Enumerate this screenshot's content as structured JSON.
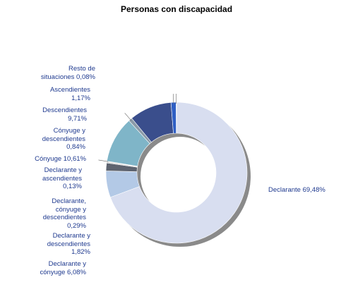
{
  "chart_data": {
    "type": "pie",
    "donut": true,
    "title": "Personas con discapacidad",
    "labels": [
      "Declarante",
      "Declarante y cónyuge",
      "Declarante y descendientes",
      "Declarante, cónyuge y descendientes",
      "Declarante y ascendientes",
      "Cónyuge",
      "Cónyuge y descendientes",
      "Descendientes",
      "Ascendientes",
      "Resto de situaciones"
    ],
    "values": [
      69.48,
      6.08,
      1.82,
      0.29,
      0.13,
      10.61,
      0.84,
      9.71,
      1.17,
      0.08
    ],
    "value_labels": [
      "69,48%",
      "6,08%",
      "1,82%",
      "0,29%",
      "0,13%",
      "10,61%",
      "0,84%",
      "9,71%",
      "1,17%",
      "0,08%"
    ],
    "display_labels": [
      "Declarante 69,48%",
      "Declarante y\ncónyuge 6,08%",
      "Declarante y\ndescendientes\n1,82%",
      "Declarante,\ncónyuge y\ndescendientes\n0,29%",
      "Declarante y\nascendientes\n0,13%",
      "Cónyuge 10,61%",
      "Cónyuge y\ndescendientes\n0,84%",
      "Descendientes\n9,71%",
      "Ascendientes\n1,17%",
      "Resto de\nsituaciones 0,08%"
    ],
    "colors": [
      "#d8def0",
      "#b3c9e6",
      "#5e6470",
      "#d0d0d0",
      "#c8c8c8",
      "#7fb5c8",
      "#8a9aa8",
      "#3a4e8c",
      "#2f5fc4",
      "#bcbcbc"
    ],
    "label_color": "#1f3a8f"
  }
}
